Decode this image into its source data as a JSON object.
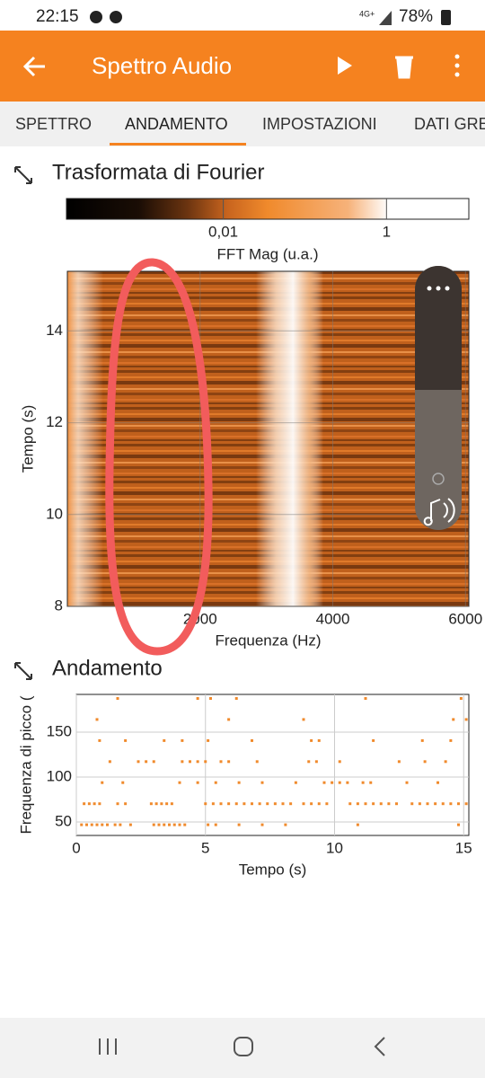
{
  "status_bar": {
    "time": "22:15",
    "network": "4G+",
    "battery": "78%"
  },
  "app_bar": {
    "title": "Spettro Audio"
  },
  "tabs": [
    "SPETTRO",
    "ANDAMENTO",
    "IMPOSTAZIONI",
    "DATI GRE"
  ],
  "active_tab": 1,
  "chart_data": [
    {
      "type": "heatmap",
      "title": "Trasformata di Fourier",
      "colorbar": {
        "label": "FFT Mag (u.a.)",
        "log": true,
        "lim": [
          0.00012,
          10.2
        ],
        "ticks": [
          {
            "value": 0.01,
            "label": "0,01"
          },
          1
        ]
      },
      "xlabel": "Frequenza (Hz)",
      "ylabel": "Tempo (s)",
      "xlim": [
        0,
        6050
      ],
      "ylim": [
        8,
        15.3
      ],
      "xticks": [
        2000,
        4000,
        6000
      ],
      "yticks": [
        8,
        10,
        12,
        14
      ],
      "grid": true
    },
    {
      "type": "scatter",
      "title": "Andamento",
      "xlabel": "Tempo (s)",
      "ylabel": "Frequenza di picco (",
      "color": "#f08a2c",
      "x": [
        0.2,
        0.4,
        0.6,
        0.8,
        1.0,
        1.2,
        1.5,
        1.7,
        2.1,
        3.0,
        3.2,
        3.4,
        3.6,
        3.8,
        4.0,
        4.2,
        5.1,
        5.4,
        6.3,
        7.2,
        8.1,
        10.9,
        14.8,
        0.3,
        0.5,
        0.7,
        0.9,
        1.6,
        1.9,
        2.9,
        3.1,
        3.3,
        3.5,
        3.7,
        5.0,
        5.3,
        5.6,
        5.9,
        6.2,
        6.5,
        6.8,
        7.1,
        7.4,
        7.7,
        8.0,
        8.3,
        8.8,
        9.1,
        9.4,
        9.7,
        10.6,
        10.9,
        11.2,
        11.5,
        11.8,
        12.1,
        12.4,
        13.0,
        13.3,
        13.6,
        13.9,
        14.2,
        14.5,
        14.8,
        15.1,
        1.0,
        1.8,
        4.0,
        4.7,
        5.4,
        6.3,
        7.2,
        8.5,
        9.6,
        9.9,
        10.2,
        10.5,
        11.1,
        11.4,
        12.8,
        14.0,
        1.3,
        2.4,
        2.7,
        3.0,
        4.1,
        4.4,
        4.7,
        5.0,
        5.6,
        5.9,
        7.0,
        9.0,
        9.3,
        10.2,
        12.5,
        13.5,
        14.3,
        0.9,
        1.9,
        3.4,
        4.1,
        5.1,
        6.8,
        9.1,
        9.4,
        11.5,
        13.4,
        14.5,
        0.8,
        5.9,
        8.8,
        14.6,
        15.1,
        1.6,
        4.7,
        5.2,
        6.2,
        11.2,
        14.9
      ],
      "values": [
        46.9,
        46.9,
        46.9,
        46.9,
        46.9,
        46.9,
        46.9,
        46.9,
        46.9,
        46.9,
        46.9,
        46.9,
        46.9,
        46.9,
        46.9,
        46.9,
        46.9,
        46.9,
        46.9,
        46.9,
        46.9,
        46.9,
        46.9,
        70.3,
        70.3,
        70.3,
        70.3,
        70.3,
        70.3,
        70.3,
        70.3,
        70.3,
        70.3,
        70.3,
        70.3,
        70.3,
        70.3,
        70.3,
        70.3,
        70.3,
        70.3,
        70.3,
        70.3,
        70.3,
        70.3,
        70.3,
        70.3,
        70.3,
        70.3,
        70.3,
        70.3,
        70.3,
        70.3,
        70.3,
        70.3,
        70.3,
        70.3,
        70.3,
        70.3,
        70.3,
        70.3,
        70.3,
        70.3,
        70.3,
        70.3,
        93.8,
        93.8,
        93.8,
        93.8,
        93.8,
        93.8,
        93.8,
        93.8,
        93.8,
        93.8,
        93.8,
        93.8,
        93.8,
        93.8,
        93.8,
        93.8,
        117.2,
        117.2,
        117.2,
        117.2,
        117.2,
        117.2,
        117.2,
        117.2,
        117.2,
        117.2,
        117.2,
        117.2,
        117.2,
        117.2,
        117.2,
        117.2,
        117.2,
        140.6,
        140.6,
        140.6,
        140.6,
        140.6,
        140.6,
        140.6,
        140.6,
        140.6,
        140.6,
        140.6,
        164.1,
        164.1,
        164.1,
        164.1,
        164.1,
        187.5,
        187.5,
        187.5,
        187.5,
        187.5,
        187.5
      ],
      "xlim": [
        0,
        15.2
      ],
      "ylim": [
        35,
        192
      ],
      "xticks": [
        0,
        5,
        10,
        15
      ],
      "yticks": [
        50,
        100,
        150
      ],
      "grid": true
    }
  ]
}
